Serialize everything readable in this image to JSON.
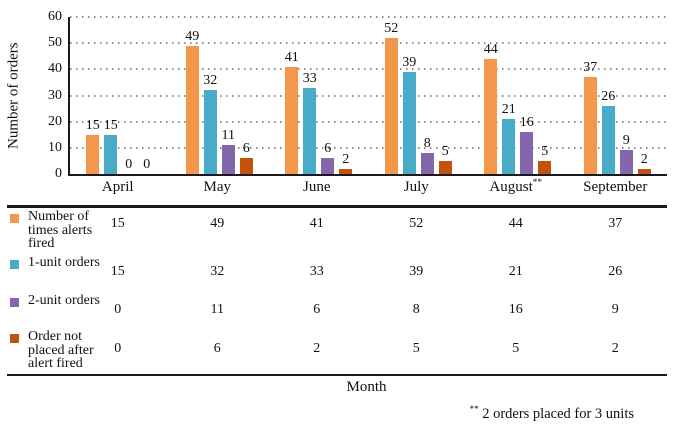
{
  "chart_data": {
    "type": "bar",
    "categories": [
      "April",
      "May",
      "June",
      "July",
      "August**",
      "September"
    ],
    "series": [
      {
        "name": "Number of times alerts fired",
        "color": "#F3984A",
        "values": [
          15,
          49,
          41,
          52,
          44,
          37
        ]
      },
      {
        "name": "1-unit orders",
        "color": "#48ACC8",
        "values": [
          15,
          32,
          33,
          39,
          21,
          26
        ]
      },
      {
        "name": "2-unit orders",
        "color": "#8565AC",
        "values": [
          0,
          11,
          6,
          8,
          16,
          9
        ]
      },
      {
        "name": "Order not placed after alert fired",
        "color": "#C1530D",
        "values": [
          0,
          6,
          2,
          5,
          5,
          2
        ]
      }
    ],
    "xlabel": "Month",
    "ylabel": "Number of orders",
    "ylim": [
      0,
      60
    ],
    "yticks": [
      0,
      10,
      20,
      30,
      40,
      50,
      60
    ],
    "grid": "horizontal-dotted",
    "legend_position": "table-below-left",
    "value_labels": true
  },
  "footnote": {
    "marker": "**",
    "text": "2 orders placed for 3 units"
  },
  "colors": {
    "axis": "#1a1a1a",
    "grid_dot": "#8c8c8c",
    "text": "#111111",
    "background": "#ffffff"
  }
}
